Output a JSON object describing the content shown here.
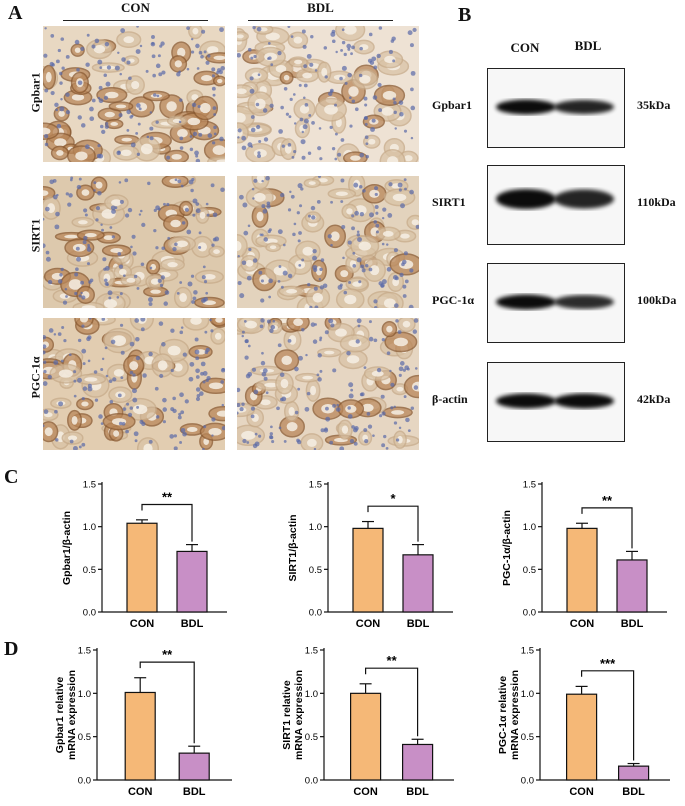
{
  "panels": {
    "a": "A",
    "b": "B",
    "c": "C",
    "d": "D"
  },
  "ihc": {
    "columns": [
      "CON",
      "BDL"
    ],
    "rows": [
      "Gpbar1",
      "SIRT1",
      "PGC-1α"
    ]
  },
  "western": {
    "columns": [
      "CON",
      "BDL"
    ],
    "blots": [
      {
        "label": "Gpbar1",
        "kda": "35kDa",
        "con_intensity": 1.0,
        "bdl_intensity": 0.8
      },
      {
        "label": "SIRT1",
        "kda": "110kDa",
        "con_intensity": 1.0,
        "bdl_intensity": 0.8
      },
      {
        "label": "PGC-1α",
        "kda": "100kDa",
        "con_intensity": 1.0,
        "bdl_intensity": 0.75
      },
      {
        "label": "β-actin",
        "kda": "42kDa",
        "con_intensity": 1.0,
        "bdl_intensity": 1.0
      }
    ]
  },
  "colors": {
    "con": "#f5b877",
    "bdl": "#c88fc6"
  },
  "chart_data": [
    {
      "type": "bar",
      "categories": [
        "CON",
        "BDL"
      ],
      "values": [
        1.04,
        0.71
      ],
      "errors": [
        0.04,
        0.08
      ],
      "ylabel": "Gpbar1/β-actin",
      "ylim": [
        0,
        1.5
      ],
      "yticks": [
        "0.0",
        "0.5",
        "1.0",
        "1.5"
      ],
      "significance": "**"
    },
    {
      "type": "bar",
      "categories": [
        "CON",
        "BDL"
      ],
      "values": [
        0.98,
        0.67
      ],
      "errors": [
        0.08,
        0.12
      ],
      "ylabel": "SIRT1/β-actin",
      "ylim": [
        0,
        1.5
      ],
      "yticks": [
        "0.0",
        "0.5",
        "1.0",
        "1.5"
      ],
      "significance": "*"
    },
    {
      "type": "bar",
      "categories": [
        "CON",
        "BDL"
      ],
      "values": [
        0.98,
        0.61
      ],
      "errors": [
        0.06,
        0.1
      ],
      "ylabel": "PGC-1α/β-actin",
      "ylim": [
        0,
        1.5
      ],
      "yticks": [
        "0.0",
        "0.5",
        "1.0",
        "1.5"
      ],
      "significance": "**"
    },
    {
      "type": "bar",
      "categories": [
        "CON",
        "BDL"
      ],
      "values": [
        1.01,
        0.31
      ],
      "errors": [
        0.17,
        0.08
      ],
      "ylabel": [
        "Gpbar1 relative",
        "mRNA expression"
      ],
      "ylim": [
        0,
        1.5
      ],
      "yticks": [
        "0.0",
        "0.5",
        "1.0",
        "1.5"
      ],
      "significance": "**"
    },
    {
      "type": "bar",
      "categories": [
        "CON",
        "BDL"
      ],
      "values": [
        1.0,
        0.41
      ],
      "errors": [
        0.11,
        0.06
      ],
      "ylabel": [
        "SIRT1 relative",
        "mRNA expression"
      ],
      "ylim": [
        0,
        1.5
      ],
      "yticks": [
        "0.0",
        "0.5",
        "1.0",
        "1.5"
      ],
      "significance": "**"
    },
    {
      "type": "bar",
      "categories": [
        "CON",
        "BDL"
      ],
      "values": [
        0.99,
        0.16
      ],
      "errors": [
        0.09,
        0.03
      ],
      "ylabel": [
        "PGC-1α relative",
        "mRNA expression"
      ],
      "ylim": [
        0,
        1.5
      ],
      "yticks": [
        "0.0",
        "0.5",
        "1.0",
        "1.5"
      ],
      "significance": "***"
    }
  ]
}
